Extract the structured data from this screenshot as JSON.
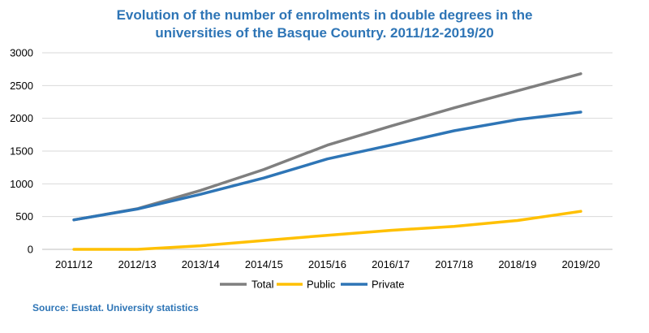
{
  "chart_data": {
    "type": "line",
    "title_line1": "Evolution of the number of enrolments in double degrees in the",
    "title_line2": "universities of the Basque Country. 2011/12-2019/20",
    "categories": [
      "2011/12",
      "2012/13",
      "2013/14",
      "2014/15",
      "2015/16",
      "2016/17",
      "2017/18",
      "2018/19",
      "2019/20"
    ],
    "ylim": [
      0,
      3000
    ],
    "yticks": [
      0,
      500,
      1000,
      1500,
      2000,
      2500,
      3000
    ],
    "grid": true,
    "legend_position": "bottom",
    "series": [
      {
        "name": "Total",
        "color": "#7f7f7f",
        "values": [
          450,
          620,
          900,
          1220,
          1590,
          1880,
          2160,
          2420,
          2680
        ]
      },
      {
        "name": "Public",
        "color": "#ffc000",
        "values": [
          0,
          0,
          55,
          135,
          215,
          290,
          350,
          440,
          580
        ]
      },
      {
        "name": "Private",
        "color": "#2e75b6",
        "values": [
          450,
          615,
          840,
          1090,
          1380,
          1590,
          1810,
          1980,
          2095
        ]
      }
    ]
  },
  "source": "Source: Eustat. University statistics"
}
